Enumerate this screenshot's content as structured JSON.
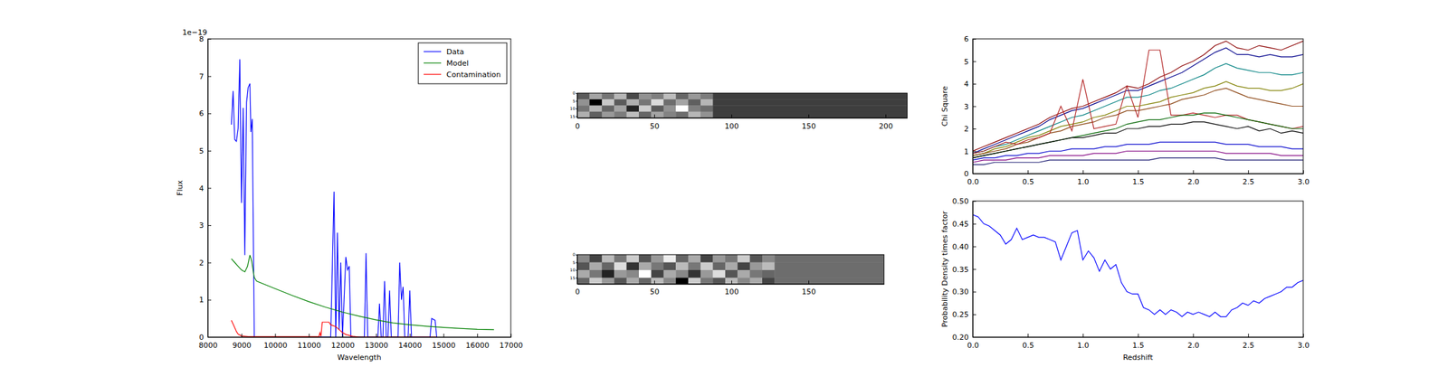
{
  "chart_data": [
    {
      "type": "line",
      "xlabel": "Wavelength",
      "ylabel": "Flux",
      "annotation": "1e−19",
      "xlim": [
        8000,
        17000
      ],
      "xticks": [
        8000,
        9000,
        10000,
        11000,
        12000,
        13000,
        14000,
        15000,
        16000,
        17000
      ],
      "ylim": [
        0,
        8
      ],
      "yticks": [
        0,
        1,
        2,
        3,
        4,
        5,
        6,
        7,
        8
      ],
      "legend": "upper-right",
      "series": [
        {
          "name": "Data",
          "color": "#0000ff",
          "x": [
            8700,
            8750,
            8800,
            8850,
            8900,
            8950,
            9000,
            9050,
            9100,
            9150,
            9200,
            9250,
            9280,
            9320,
            9380,
            11650,
            11750,
            11800,
            11850,
            11900,
            11950,
            12000,
            12100,
            12150,
            12200,
            12250,
            12650,
            12700,
            12750,
            13050,
            13100,
            13150,
            13200,
            13250,
            13300,
            13350,
            13400,
            13450,
            13650,
            13700,
            13750,
            13800,
            13850,
            13950,
            14000,
            14050,
            14600,
            14650,
            14750,
            14800
          ],
          "values": [
            5.7,
            6.6,
            5.3,
            5.25,
            5.6,
            7.45,
            3.6,
            6.15,
            2.2,
            6.3,
            6.7,
            6.8,
            5.5,
            5.85,
            0,
            0,
            3.9,
            0,
            2.8,
            0.2,
            2.0,
            0,
            2.15,
            1.8,
            1.9,
            0,
            0,
            2.25,
            0,
            0,
            0.9,
            0,
            0,
            1.5,
            0,
            0,
            1.25,
            0,
            0,
            2.0,
            1.0,
            1.35,
            0,
            0,
            1.25,
            0,
            0,
            0.5,
            0.45,
            0
          ]
        },
        {
          "name": "Model",
          "color": "#008000",
          "x": [
            8700,
            8800,
            8900,
            9000,
            9100,
            9180,
            9250,
            9300,
            9380,
            9450,
            10000,
            10500,
            11000,
            11500,
            12000,
            12500,
            13000,
            13500,
            14000,
            14500,
            15000,
            15500,
            16000,
            16500
          ],
          "values": [
            2.1,
            2.0,
            1.9,
            1.8,
            1.75,
            1.9,
            2.2,
            2.05,
            1.6,
            1.5,
            1.3,
            1.12,
            0.95,
            0.8,
            0.67,
            0.56,
            0.46,
            0.38,
            0.33,
            0.29,
            0.26,
            0.23,
            0.21,
            0.2
          ]
        },
        {
          "name": "Contamination",
          "color": "#ff0000",
          "x": [
            8700,
            8750,
            8800,
            8850,
            8900,
            9000,
            9200,
            11300,
            11330,
            11360,
            11400,
            11600,
            11650,
            11800,
            11900,
            12000,
            12100,
            12300,
            12500,
            14800
          ],
          "values": [
            0.45,
            0.35,
            0.25,
            0.15,
            0.08,
            0.03,
            0.01,
            0.01,
            0.12,
            0.02,
            0.4,
            0.4,
            0.33,
            0.28,
            0.2,
            0.12,
            0.07,
            0.02,
            0,
            0
          ]
        }
      ]
    },
    {
      "type": "heatmap",
      "xlim": [
        0,
        214
      ],
      "xticks": [
        0,
        50,
        100,
        150,
        200
      ],
      "ylim": [
        0,
        16
      ],
      "yticks": [
        0,
        5,
        10,
        15
      ],
      "x_edges": [
        0,
        8,
        16,
        24,
        32,
        40,
        48,
        56,
        64,
        72,
        80,
        88,
        214
      ],
      "y_edges": [
        0,
        4,
        8,
        12,
        16
      ],
      "cells": [
        [
          0.35,
          0.55,
          0.42,
          0.6,
          0.3,
          0.5,
          0.45,
          0.62,
          0.38,
          0.52,
          0.44,
          0.27
        ],
        [
          0.5,
          0.1,
          0.65,
          0.35,
          0.58,
          0.42,
          0.7,
          0.4,
          0.55,
          0.36,
          0.6,
          0.27
        ],
        [
          0.42,
          0.6,
          0.38,
          0.55,
          0.2,
          0.66,
          0.35,
          0.5,
          0.8,
          0.45,
          0.4,
          0.27
        ],
        [
          0.58,
          0.36,
          0.52,
          0.44,
          0.62,
          0.38,
          0.55,
          0.46,
          0.4,
          0.6,
          0.5,
          0.27
        ]
      ]
    },
    {
      "type": "heatmap",
      "xlim": [
        0,
        199
      ],
      "xticks": [
        0,
        50,
        100,
        150
      ],
      "ylim": [
        0,
        19
      ],
      "yticks": [
        0,
        5,
        10,
        15
      ],
      "x_edges": [
        0,
        8,
        16,
        24,
        32,
        40,
        48,
        56,
        64,
        72,
        80,
        88,
        96,
        104,
        112,
        120,
        128,
        199
      ],
      "y_edges": [
        0,
        5,
        10,
        15,
        19
      ],
      "cells": [
        [
          0.5,
          0.3,
          0.65,
          0.45,
          0.7,
          0.35,
          0.55,
          0.8,
          0.4,
          0.6,
          0.3,
          0.55,
          0.45,
          0.7,
          0.35,
          0.5,
          0.42
        ],
        [
          0.35,
          0.6,
          0.4,
          0.75,
          0.25,
          0.6,
          0.45,
          0.35,
          0.65,
          0.45,
          0.7,
          0.4,
          0.6,
          0.3,
          0.55,
          0.65,
          0.42
        ],
        [
          0.6,
          0.45,
          0.2,
          0.55,
          0.5,
          0.85,
          0.3,
          0.6,
          0.5,
          0.25,
          0.55,
          0.75,
          0.35,
          0.6,
          0.45,
          0.4,
          0.42
        ],
        [
          0.4,
          0.7,
          0.55,
          0.35,
          0.6,
          0.4,
          0.65,
          0.5,
          0.1,
          0.7,
          0.45,
          0.35,
          0.65,
          0.5,
          0.6,
          0.3,
          0.42
        ]
      ]
    },
    {
      "type": "line",
      "ylabel": "Chi Square",
      "xlim": [
        0,
        3
      ],
      "xticks": [
        {
          "value": 0,
          "label": "0.0"
        },
        {
          "value": 0.5,
          "label": "0.5"
        },
        {
          "value": 1,
          "label": "1.0"
        },
        {
          "value": 1.5,
          "label": "1.5"
        },
        {
          "value": 2,
          "label": "2.0"
        },
        {
          "value": 2.5,
          "label": "2.5"
        },
        {
          "value": 3,
          "label": "3.0"
        }
      ],
      "ylim": [
        0,
        6
      ],
      "yticks": [
        0,
        1,
        2,
        3,
        4,
        5,
        6
      ],
      "x": [
        0,
        0.1,
        0.2,
        0.3,
        0.4,
        0.5,
        0.6,
        0.7,
        0.8,
        0.9,
        1,
        1.1,
        1.2,
        1.3,
        1.4,
        1.5,
        1.6,
        1.7,
        1.8,
        1.9,
        2,
        2.1,
        2.2,
        2.3,
        2.4,
        2.5,
        2.6,
        2.7,
        2.8,
        2.9,
        3
      ],
      "series": [
        {
          "color": "#8b0000",
          "values": [
            1.0,
            1.2,
            1.4,
            1.6,
            1.8,
            2.0,
            2.2,
            2.5,
            2.7,
            2.9,
            3.0,
            3.2,
            3.4,
            3.6,
            3.9,
            3.8,
            4.0,
            4.3,
            4.5,
            4.8,
            5.0,
            5.3,
            5.7,
            5.9,
            5.6,
            5.5,
            5.7,
            5.6,
            5.5,
            5.7,
            5.9
          ]
        },
        {
          "color": "#00008b",
          "values": [
            0.9,
            1.1,
            1.3,
            1.5,
            1.7,
            1.9,
            2.1,
            2.4,
            2.6,
            2.8,
            2.9,
            3.1,
            3.3,
            3.5,
            3.7,
            3.7,
            3.9,
            4.1,
            4.3,
            4.5,
            4.8,
            5.1,
            5.4,
            5.6,
            5.3,
            5.3,
            5.2,
            5.3,
            5.2,
            5.2,
            5.3
          ]
        },
        {
          "color": "#008080",
          "values": [
            0.9,
            1.0,
            1.2,
            1.3,
            1.5,
            1.7,
            1.9,
            2.1,
            2.3,
            2.5,
            2.6,
            2.8,
            3.0,
            3.2,
            3.4,
            3.4,
            3.5,
            3.7,
            3.8,
            4.0,
            4.2,
            4.4,
            4.7,
            4.9,
            4.7,
            4.6,
            4.5,
            4.5,
            4.4,
            4.4,
            4.5
          ]
        },
        {
          "color": "#808000",
          "values": [
            0.8,
            0.9,
            1.1,
            1.2,
            1.4,
            1.6,
            1.7,
            1.9,
            2.1,
            2.2,
            2.3,
            2.5,
            2.6,
            2.8,
            3.0,
            3.0,
            3.1,
            3.2,
            3.4,
            3.5,
            3.6,
            3.8,
            3.9,
            4.1,
            3.9,
            3.8,
            3.8,
            3.7,
            3.7,
            3.8,
            4.0
          ]
        },
        {
          "color": "#8b4513",
          "values": [
            0.8,
            0.9,
            1.0,
            1.1,
            1.3,
            1.4,
            1.6,
            1.8,
            1.9,
            2.1,
            2.2,
            2.3,
            2.5,
            2.6,
            2.8,
            2.8,
            2.9,
            3.0,
            3.1,
            3.3,
            3.4,
            3.5,
            3.7,
            3.8,
            3.6,
            3.4,
            3.3,
            3.2,
            3.1,
            3.0,
            3.0
          ]
        },
        {
          "color": "#b22222",
          "values": [
            0.9,
            1.0,
            1.2,
            1.4,
            1.3,
            1.5,
            1.6,
            1.8,
            3.0,
            1.9,
            4.2,
            2.0,
            2.1,
            2.2,
            3.9,
            2.5,
            5.5,
            5.5,
            2.6,
            2.6,
            2.7,
            2.6,
            2.5,
            2.6,
            2.6,
            2.4,
            2.3,
            2.2,
            2.1,
            2.0,
            2.1
          ]
        },
        {
          "color": "#006400",
          "values": [
            0.7,
            0.8,
            0.9,
            1.0,
            1.1,
            1.2,
            1.3,
            1.4,
            1.5,
            1.6,
            1.7,
            1.8,
            1.9,
            2.0,
            2.2,
            2.3,
            2.4,
            2.4,
            2.5,
            2.6,
            2.6,
            2.7,
            2.7,
            2.6,
            2.5,
            2.4,
            2.3,
            2.2,
            2.1,
            2.0,
            2.0
          ]
        },
        {
          "color": "#000000",
          "values": [
            0.7,
            0.8,
            0.9,
            1.0,
            1.1,
            1.2,
            1.3,
            1.4,
            1.5,
            1.6,
            1.6,
            1.7,
            1.8,
            1.8,
            2.0,
            2.0,
            2.1,
            2.1,
            2.2,
            2.2,
            2.3,
            2.3,
            2.2,
            2.1,
            2.0,
            2.1,
            1.9,
            2.0,
            1.8,
            1.9,
            1.8
          ]
        },
        {
          "color": "#0000cd",
          "values": [
            0.6,
            0.7,
            0.7,
            0.8,
            0.8,
            0.9,
            0.9,
            1.0,
            1.0,
            1.1,
            1.1,
            1.1,
            1.2,
            1.2,
            1.3,
            1.3,
            1.3,
            1.4,
            1.4,
            1.4,
            1.4,
            1.4,
            1.4,
            1.3,
            1.3,
            1.3,
            1.2,
            1.2,
            1.2,
            1.1,
            1.1
          ]
        },
        {
          "color": "#800080",
          "values": [
            0.5,
            0.6,
            0.6,
            0.6,
            0.7,
            0.7,
            0.7,
            0.8,
            0.8,
            0.8,
            0.8,
            0.9,
            0.9,
            0.9,
            1.0,
            1.0,
            1.0,
            1.0,
            1.0,
            1.0,
            1.0,
            1.0,
            1.0,
            0.9,
            0.9,
            0.9,
            0.9,
            0.9,
            0.8,
            0.8,
            0.8
          ]
        },
        {
          "color": "#191970",
          "values": [
            0.4,
            0.4,
            0.5,
            0.5,
            0.5,
            0.5,
            0.5,
            0.6,
            0.6,
            0.6,
            0.6,
            0.6,
            0.6,
            0.6,
            0.6,
            0.6,
            0.6,
            0.7,
            0.7,
            0.7,
            0.7,
            0.7,
            0.7,
            0.6,
            0.6,
            0.6,
            0.6,
            0.6,
            0.6,
            0.6,
            0.6
          ]
        }
      ]
    },
    {
      "type": "line",
      "xlabel": "Redshift",
      "ylabel": "Probability Density times factor",
      "xlim": [
        0,
        3
      ],
      "xticks": [
        {
          "value": 0,
          "label": "0.0"
        },
        {
          "value": 0.5,
          "label": "0.5"
        },
        {
          "value": 1,
          "label": "1.0"
        },
        {
          "value": 1.5,
          "label": "1.5"
        },
        {
          "value": 2,
          "label": "2.0"
        },
        {
          "value": 2.5,
          "label": "2.5"
        },
        {
          "value": 3,
          "label": "3.0"
        }
      ],
      "ylim": [
        0.2,
        0.5
      ],
      "yticks": [
        {
          "value": 0.2,
          "label": "0.20"
        },
        {
          "value": 0.25,
          "label": "0.25"
        },
        {
          "value": 0.3,
          "label": "0.30"
        },
        {
          "value": 0.35,
          "label": "0.35"
        },
        {
          "value": 0.4,
          "label": "0.40"
        },
        {
          "value": 0.45,
          "label": "0.45"
        },
        {
          "value": 0.5,
          "label": "0.50"
        }
      ],
      "x": [
        0,
        0.05,
        0.1,
        0.15,
        0.2,
        0.25,
        0.3,
        0.35,
        0.4,
        0.45,
        0.5,
        0.55,
        0.6,
        0.65,
        0.7,
        0.75,
        0.8,
        0.85,
        0.9,
        0.95,
        1,
        1.05,
        1.1,
        1.15,
        1.2,
        1.25,
        1.3,
        1.35,
        1.4,
        1.45,
        1.5,
        1.55,
        1.6,
        1.65,
        1.7,
        1.75,
        1.8,
        1.85,
        1.9,
        1.95,
        2,
        2.05,
        2.1,
        2.15,
        2.2,
        2.25,
        2.3,
        2.35,
        2.4,
        2.45,
        2.5,
        2.55,
        2.6,
        2.65,
        2.7,
        2.75,
        2.8,
        2.85,
        2.9,
        2.95,
        3
      ],
      "series": [
        {
          "color": "#0000ff",
          "values": [
            0.47,
            0.465,
            0.45,
            0.445,
            0.435,
            0.425,
            0.405,
            0.415,
            0.44,
            0.415,
            0.42,
            0.425,
            0.42,
            0.42,
            0.415,
            0.41,
            0.37,
            0.4,
            0.43,
            0.435,
            0.37,
            0.39,
            0.375,
            0.345,
            0.37,
            0.35,
            0.36,
            0.32,
            0.3,
            0.295,
            0.295,
            0.265,
            0.26,
            0.25,
            0.26,
            0.25,
            0.26,
            0.255,
            0.245,
            0.255,
            0.25,
            0.255,
            0.25,
            0.245,
            0.255,
            0.245,
            0.245,
            0.26,
            0.265,
            0.275,
            0.27,
            0.28,
            0.275,
            0.285,
            0.29,
            0.295,
            0.3,
            0.31,
            0.31,
            0.32,
            0.325
          ]
        }
      ]
    }
  ]
}
